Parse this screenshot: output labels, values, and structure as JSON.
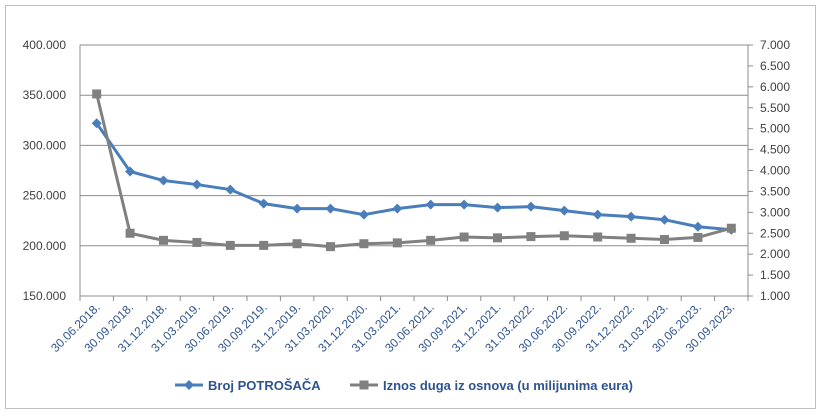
{
  "chart_data": {
    "type": "line",
    "title": "",
    "categories": [
      "30.06.2018.",
      "30.09.2018.",
      "31.12.2018.",
      "31.03.2019.",
      "30.06.2019.",
      "30.09.2019.",
      "31.12.2019.",
      "31.03.2020.",
      "31.12.2020.",
      "31.03.2021.",
      "30.06.2021.",
      "30.09.2021.",
      "31.12.2021.",
      "31.03.2022.",
      "30.06.2022.",
      "30.09.2022.",
      "31.12.2022.",
      "31.03.2023.",
      "30.06.2023.",
      "30.09.2023."
    ],
    "y_left": {
      "ylim": [
        150000,
        400000
      ],
      "ticks": [
        "150.000",
        "200.000",
        "250.000",
        "300.000",
        "350.000",
        "400.000"
      ],
      "tick_values": [
        150000,
        200000,
        250000,
        300000,
        350000,
        400000
      ]
    },
    "y_right": {
      "ylim": [
        1000,
        7000
      ],
      "ticks": [
        "1.000",
        "1.500",
        "2.000",
        "2.500",
        "3.000",
        "3.500",
        "4.000",
        "4.500",
        "5.000",
        "5.500",
        "6.000",
        "6.500",
        "7.000"
      ],
      "tick_values": [
        1000,
        1500,
        2000,
        2500,
        3000,
        3500,
        4000,
        4500,
        5000,
        5500,
        6000,
        6500,
        7000
      ]
    },
    "grid": true,
    "legend_position": "bottom",
    "series": [
      {
        "name": "Broj POTROŠAČA",
        "axis": "left",
        "color": "#4a7ebb",
        "marker": "diamond",
        "values": [
          322000,
          274000,
          265000,
          261000,
          256000,
          242000,
          237000,
          237000,
          231000,
          237000,
          241000,
          241000,
          238000,
          239000,
          235000,
          231000,
          229000,
          226000,
          219000,
          216000
        ]
      },
      {
        "name": "Iznos duga iz osnova (u milijunima eura)",
        "axis": "right",
        "color": "#808080",
        "marker": "square",
        "values": [
          5830,
          2500,
          2330,
          2280,
          2210,
          2210,
          2250,
          2180,
          2250,
          2270,
          2330,
          2410,
          2390,
          2420,
          2440,
          2410,
          2380,
          2350,
          2400,
          2620
        ]
      }
    ]
  }
}
